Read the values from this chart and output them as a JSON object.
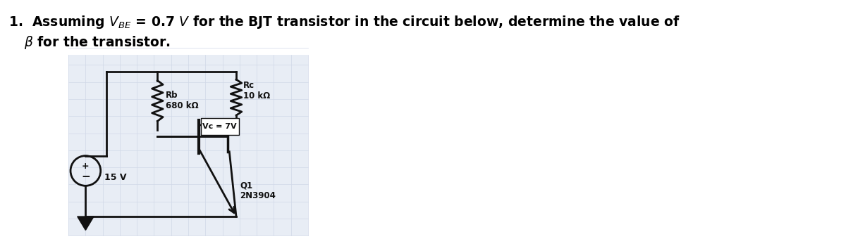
{
  "title_line1": "1.  Assuming $V_{BE}$ = 0.7 $V$ for the BJT transistor in the circuit below, determine the value of",
  "title_line2": "$\\beta$ for the transistor.",
  "title_fontsize": 13.5,
  "bg_color": "#ffffff",
  "grid_color": "#d0d8e8",
  "circuit_bg": "#e8edf5",
  "rb_label": "Rb\n680 kΩ",
  "rc_label": "Rc\n10 kΩ",
  "vc_label": "Vc = 7V",
  "v_label": "15 V",
  "q_label": "Q1\n2N3904"
}
